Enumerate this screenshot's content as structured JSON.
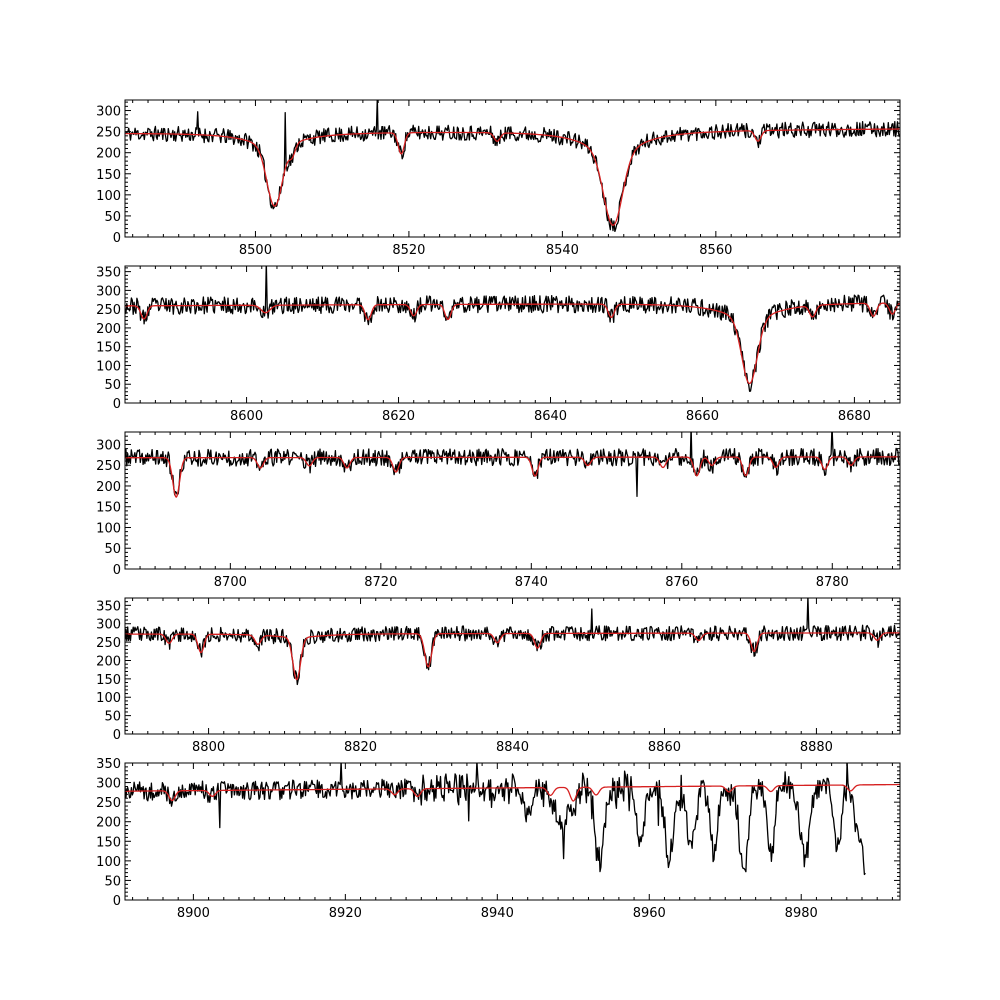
{
  "colors": {
    "observed": "#000000",
    "model": "#d62020",
    "axes": "#000000",
    "background": "#ffffff"
  },
  "chart_data": [
    {
      "type": "line",
      "title": "",
      "xlabel": "",
      "ylabel": "",
      "xlim": [
        8483,
        8584
      ],
      "ylim": [
        0,
        325
      ],
      "xticks": [
        8500,
        8520,
        8540,
        8560
      ],
      "xtick_labels": [
        "8500",
        "8520",
        "8540",
        "8560"
      ],
      "yticks": [
        0,
        50,
        100,
        150,
        200,
        250,
        300
      ],
      "ytick_labels": [
        "0",
        "50",
        "100",
        "150",
        "200",
        "250",
        "300"
      ],
      "continuum": [
        245,
        255
      ],
      "lines": [
        {
          "x": 8502.5,
          "depth": 140,
          "width": 1.0,
          "wing": 35
        },
        {
          "x": 8504.8,
          "depth": 25,
          "width": 0.4,
          "wing": 0
        },
        {
          "x": 8519.0,
          "depth": 50,
          "width": 0.4,
          "wing": 0
        },
        {
          "x": 8531.5,
          "depth": 20,
          "width": 0.4,
          "wing": 0
        },
        {
          "x": 8546.6,
          "depth": 165,
          "width": 1.2,
          "wing": 60
        },
        {
          "x": 8565.5,
          "depth": 25,
          "width": 0.4,
          "wing": 0
        }
      ],
      "noise": 16,
      "seed": 11,
      "spikes": [
        {
          "x": 8515.9,
          "value": 330
        },
        {
          "x": 8503.9,
          "value": 295
        },
        {
          "x": 8492.5,
          "value": 297
        }
      ],
      "series": [
        {
          "name": "",
          "color": "#000000",
          "kind": "observed"
        },
        {
          "name": "",
          "color": "#d62020",
          "kind": "model"
        }
      ]
    },
    {
      "type": "line",
      "title": "",
      "xlabel": "",
      "ylabel": "",
      "xlim": [
        8584,
        8686
      ],
      "ylim": [
        0,
        365
      ],
      "xticks": [
        8600,
        8620,
        8640,
        8660,
        8680
      ],
      "xtick_labels": [
        "8600",
        "8620",
        "8640",
        "8660",
        "8680"
      ],
      "yticks": [
        0,
        50,
        100,
        150,
        200,
        250,
        300,
        350
      ],
      "ytick_labels": [
        "0",
        "50",
        "100",
        "150",
        "200",
        "250",
        "300",
        "350"
      ],
      "continuum": [
        258,
        268
      ],
      "lines": [
        {
          "x": 8586.5,
          "depth": 35,
          "width": 0.4,
          "wing": 0
        },
        {
          "x": 8602.5,
          "depth": 20,
          "width": 0.6,
          "wing": 0
        },
        {
          "x": 8616.0,
          "depth": 40,
          "width": 0.4,
          "wing": 0
        },
        {
          "x": 8622.0,
          "depth": 30,
          "width": 0.4,
          "wing": 0
        },
        {
          "x": 8626.5,
          "depth": 40,
          "width": 0.4,
          "wing": 0
        },
        {
          "x": 8648.0,
          "depth": 35,
          "width": 0.4,
          "wing": 0
        },
        {
          "x": 8666.2,
          "depth": 170,
          "width": 1.0,
          "wing": 45
        },
        {
          "x": 8674.5,
          "depth": 30,
          "width": 0.4,
          "wing": 0
        },
        {
          "x": 8682.5,
          "depth": 35,
          "width": 0.4,
          "wing": 0
        },
        {
          "x": 8685.0,
          "depth": 30,
          "width": 0.4,
          "wing": 0
        }
      ],
      "noise": 20,
      "seed": 23,
      "spikes": [
        {
          "x": 8602.6,
          "value": 375
        }
      ],
      "series": [
        {
          "name": "",
          "color": "#000000",
          "kind": "observed"
        },
        {
          "name": "",
          "color": "#d62020",
          "kind": "model"
        }
      ]
    },
    {
      "type": "line",
      "title": "",
      "xlabel": "",
      "ylabel": "",
      "xlim": [
        8686,
        8789
      ],
      "ylim": [
        0,
        330
      ],
      "xticks": [
        8700,
        8720,
        8740,
        8760,
        8780
      ],
      "xtick_labels": [
        "8700",
        "8720",
        "8740",
        "8760",
        "8780"
      ],
      "yticks": [
        0,
        50,
        100,
        150,
        200,
        250,
        300
      ],
      "ytick_labels": [
        "0",
        "50",
        "100",
        "150",
        "200",
        "250",
        "300"
      ],
      "continuum": [
        268,
        270
      ],
      "lines": [
        {
          "x": 8692.8,
          "depth": 95,
          "width": 0.45,
          "wing": 0
        },
        {
          "x": 8704.0,
          "depth": 25,
          "width": 0.4,
          "wing": 0
        },
        {
          "x": 8710.5,
          "depth": 20,
          "width": 0.4,
          "wing": 0
        },
        {
          "x": 8715.5,
          "depth": 25,
          "width": 0.4,
          "wing": 0
        },
        {
          "x": 8722.0,
          "depth": 35,
          "width": 0.4,
          "wing": 0
        },
        {
          "x": 8740.5,
          "depth": 45,
          "width": 0.4,
          "wing": 0
        },
        {
          "x": 8747.5,
          "depth": 20,
          "width": 0.4,
          "wing": 0
        },
        {
          "x": 8757.5,
          "depth": 25,
          "width": 0.4,
          "wing": 0
        },
        {
          "x": 8762.0,
          "depth": 45,
          "width": 0.4,
          "wing": 0
        },
        {
          "x": 8764.0,
          "depth": 20,
          "width": 0.4,
          "wing": 0
        },
        {
          "x": 8768.5,
          "depth": 45,
          "width": 0.4,
          "wing": 0
        },
        {
          "x": 8772.5,
          "depth": 25,
          "width": 0.4,
          "wing": 0
        },
        {
          "x": 8779.0,
          "depth": 30,
          "width": 0.4,
          "wing": 0
        },
        {
          "x": 8782.5,
          "depth": 20,
          "width": 0.4,
          "wing": 0
        }
      ],
      "noise": 18,
      "seed": 37,
      "spikes": [
        {
          "x": 8761.3,
          "value": 345
        },
        {
          "x": 8780.0,
          "value": 345
        },
        {
          "x": 8754.0,
          "value": 175
        }
      ],
      "series": [
        {
          "name": "",
          "color": "#000000",
          "kind": "observed"
        },
        {
          "name": "",
          "color": "#d62020",
          "kind": "model"
        }
      ]
    },
    {
      "type": "line",
      "title": "",
      "xlabel": "",
      "ylabel": "",
      "xlim": [
        8789,
        8891
      ],
      "ylim": [
        0,
        370
      ],
      "xticks": [
        8800,
        8820,
        8840,
        8860,
        8880
      ],
      "xtick_labels": [
        "8800",
        "8820",
        "8840",
        "8860",
        "8880"
      ],
      "yticks": [
        0,
        50,
        100,
        150,
        200,
        250,
        300,
        350
      ],
      "ytick_labels": [
        "0",
        "50",
        "100",
        "150",
        "200",
        "250",
        "300",
        "350"
      ],
      "continuum": [
        272,
        275
      ],
      "lines": [
        {
          "x": 8794.8,
          "depth": 25,
          "width": 0.4,
          "wing": 0
        },
        {
          "x": 8799.0,
          "depth": 50,
          "width": 0.4,
          "wing": 0
        },
        {
          "x": 8806.5,
          "depth": 25,
          "width": 0.4,
          "wing": 0
        },
        {
          "x": 8811.6,
          "depth": 115,
          "width": 0.5,
          "wing": 10
        },
        {
          "x": 8828.9,
          "depth": 90,
          "width": 0.45,
          "wing": 0
        },
        {
          "x": 8838.0,
          "depth": 25,
          "width": 0.4,
          "wing": 0
        },
        {
          "x": 8843.3,
          "depth": 40,
          "width": 0.4,
          "wing": 0
        },
        {
          "x": 8864.5,
          "depth": 20,
          "width": 0.4,
          "wing": 0
        },
        {
          "x": 8871.8,
          "depth": 50,
          "width": 0.4,
          "wing": 0
        },
        {
          "x": 8888.0,
          "depth": 20,
          "width": 0.4,
          "wing": 0
        }
      ],
      "noise": 18,
      "seed": 53,
      "spikes": [
        {
          "x": 8878.9,
          "value": 375
        },
        {
          "x": 8850.5,
          "value": 340
        }
      ],
      "series": [
        {
          "name": "",
          "color": "#000000",
          "kind": "observed"
        },
        {
          "name": "",
          "color": "#d62020",
          "kind": "model"
        }
      ]
    },
    {
      "type": "line",
      "title": "",
      "xlabel": "",
      "ylabel": "",
      "xlim": [
        8891,
        8993
      ],
      "ylim": [
        0,
        350
      ],
      "xticks": [
        8900,
        8920,
        8940,
        8960,
        8980
      ],
      "xtick_labels": [
        "8900",
        "8920",
        "8940",
        "8960",
        "8980"
      ],
      "yticks": [
        0,
        50,
        100,
        150,
        200,
        250,
        300,
        350
      ],
      "ytick_labels": [
        "0",
        "50",
        "100",
        "150",
        "200",
        "250",
        "300",
        "350"
      ],
      "continuum": [
        278,
        295
      ],
      "lines": [
        {
          "x": 8897.2,
          "depth": 25,
          "width": 0.4,
          "wing": 0
        },
        {
          "x": 8902.5,
          "depth": 15,
          "width": 0.4,
          "wing": 0
        },
        {
          "x": 8926.5,
          "depth": 15,
          "width": 0.4,
          "wing": 0
        },
        {
          "x": 8929.5,
          "depth": 20,
          "width": 0.4,
          "wing": 0
        },
        {
          "x": 8947.0,
          "depth": 20,
          "width": 0.4,
          "wing": 0
        },
        {
          "x": 8950.0,
          "depth": 35,
          "width": 0.4,
          "wing": 0
        },
        {
          "x": 8953.0,
          "depth": 20,
          "width": 0.4,
          "wing": 0
        },
        {
          "x": 8970.5,
          "depth": 15,
          "width": 0.4,
          "wing": 0
        },
        {
          "x": 8976.0,
          "depth": 15,
          "width": 0.4,
          "wing": 0
        },
        {
          "x": 8986.5,
          "depth": 15,
          "width": 0.4,
          "wing": 0
        }
      ],
      "noise": 22,
      "seed": 71,
      "telluric_start": 8930,
      "telluric": [
        {
          "x": 8944.0,
          "depth": 70,
          "width": 0.5
        },
        {
          "x": 8948.5,
          "depth": 120,
          "width": 0.6
        },
        {
          "x": 8953.5,
          "depth": 175,
          "width": 0.6
        },
        {
          "x": 8958.8,
          "depth": 140,
          "width": 0.5
        },
        {
          "x": 8962.6,
          "depth": 200,
          "width": 0.5
        },
        {
          "x": 8965.5,
          "depth": 150,
          "width": 0.6
        },
        {
          "x": 8968.5,
          "depth": 170,
          "width": 0.5
        },
        {
          "x": 8972.4,
          "depth": 220,
          "width": 0.55
        },
        {
          "x": 8976.0,
          "depth": 150,
          "width": 0.5
        },
        {
          "x": 8980.5,
          "depth": 195,
          "width": 0.6
        },
        {
          "x": 8984.8,
          "depth": 170,
          "width": 0.5
        }
      ],
      "data_end": 8988.5,
      "dropoff": [
        8986.5,
        8988.5
      ],
      "spikes": [
        {
          "x": 8919.5,
          "value": 355
        },
        {
          "x": 8937.3,
          "value": 355
        },
        {
          "x": 8903.5,
          "value": 185
        },
        {
          "x": 8986.0,
          "value": 355
        }
      ],
      "series": [
        {
          "name": "",
          "color": "#000000",
          "kind": "observed"
        },
        {
          "name": "",
          "color": "#d62020",
          "kind": "model"
        }
      ]
    }
  ]
}
